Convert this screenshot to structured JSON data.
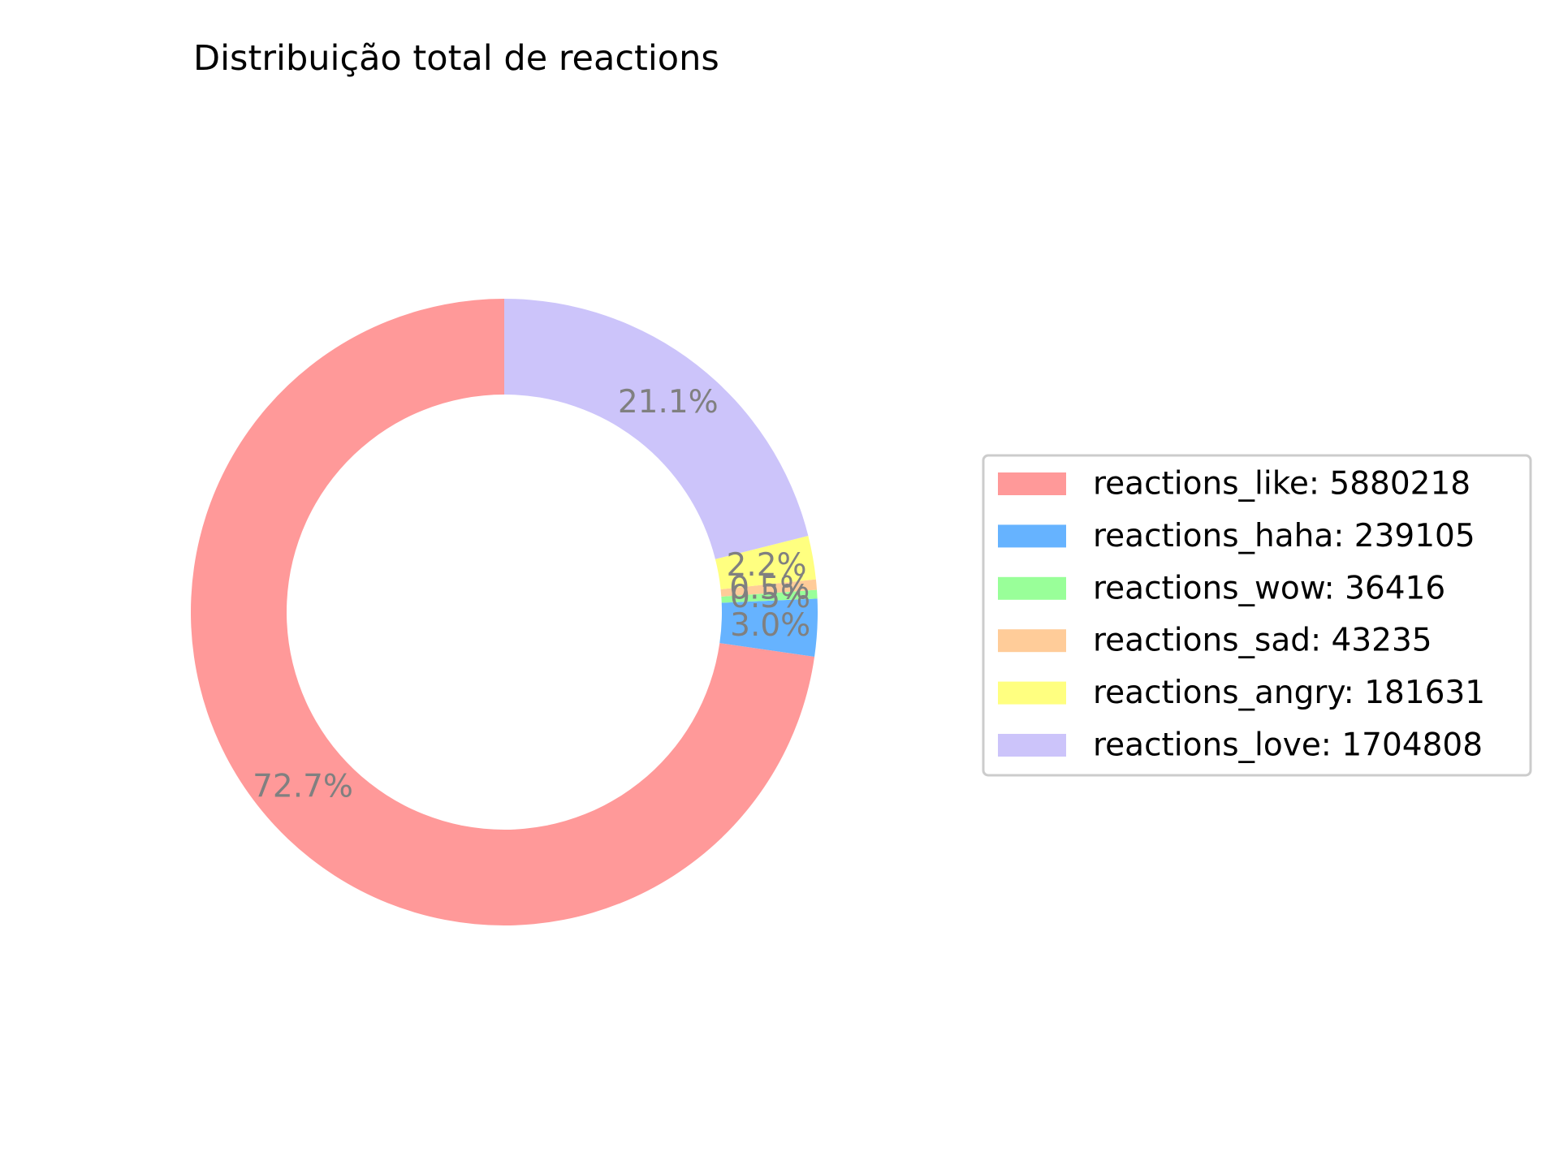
{
  "chart_data": {
    "type": "pie",
    "variant": "donut",
    "title": "Distribuição total de reactions",
    "categories": [
      "reactions_like",
      "reactions_haha",
      "reactions_wow",
      "reactions_sad",
      "reactions_angry",
      "reactions_love"
    ],
    "values": [
      5880218,
      239105,
      36416,
      43235,
      181631,
      1704808
    ],
    "percent_labels": [
      "72.7%",
      "3.0%",
      "0.5%",
      "0.5%",
      "2.2%",
      "21.1%"
    ],
    "legend_entries": [
      "reactions_like: 5880218",
      "reactions_haha: 239105",
      "reactions_wow: 36416",
      "reactions_sad: 43235",
      "reactions_angry: 181631",
      "reactions_love: 1704808"
    ],
    "colors": [
      "#ff9999",
      "#66b3ff",
      "#99ff99",
      "#ffcc99",
      "#ffff80",
      "#ccc4fa"
    ],
    "start_angle_deg": 90,
    "direction": "counterclockwise",
    "legend_position": "center-right",
    "label_color": "#808080"
  }
}
